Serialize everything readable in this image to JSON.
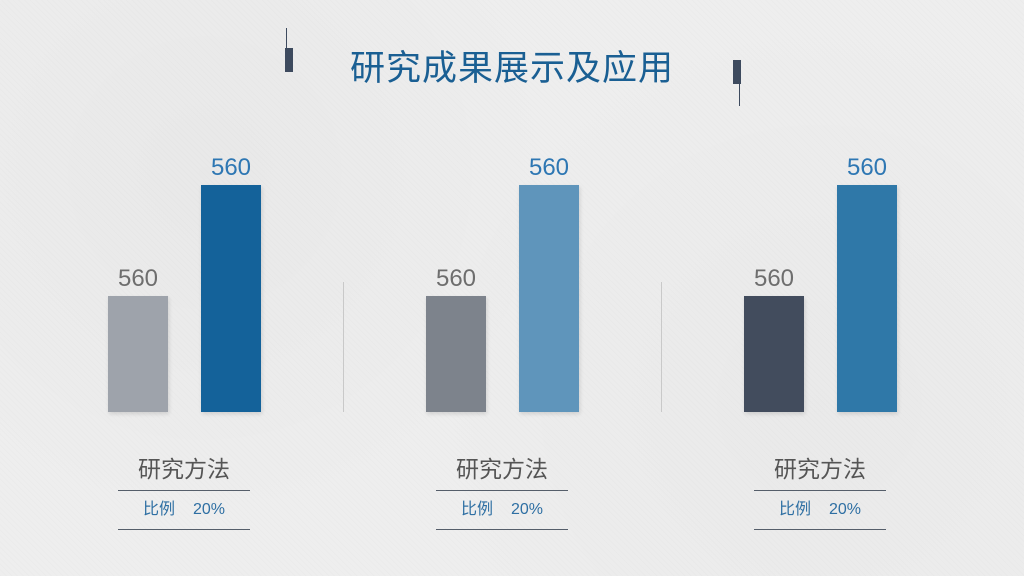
{
  "title": "研究成果展示及应用",
  "colors": {
    "title": "#1a5f93",
    "label_dark": "#6b6b6b",
    "label_blue": "#2e77b3",
    "ratio_text": "#2e6fa3"
  },
  "chart_data": [
    {
      "type": "bar",
      "categories": [
        "",
        ""
      ],
      "values": [
        560,
        560
      ],
      "data_labels": [
        "560",
        "560"
      ],
      "colors": [
        "#9ea3ab",
        "#14629a"
      ],
      "label_colors": [
        "#6e6e6e",
        "#2e77b3"
      ],
      "caption": "研究方法",
      "ratio_label": "比例",
      "ratio_value": "20%"
    },
    {
      "type": "bar",
      "categories": [
        "",
        ""
      ],
      "values": [
        560,
        560
      ],
      "data_labels": [
        "560",
        "560"
      ],
      "colors": [
        "#7d838c",
        "#5f95bb"
      ],
      "label_colors": [
        "#6e6e6e",
        "#2e77b3"
      ],
      "caption": "研究方法",
      "ratio_label": "比例",
      "ratio_value": "20%"
    },
    {
      "type": "bar",
      "categories": [
        "",
        ""
      ],
      "values": [
        560,
        560
      ],
      "data_labels": [
        "560",
        "560"
      ],
      "colors": [
        "#424c5d",
        "#2f78a8"
      ],
      "label_colors": [
        "#6e6e6e",
        "#2e77b3"
      ],
      "caption": "研究方法",
      "ratio_label": "比例",
      "ratio_value": "20%"
    }
  ]
}
